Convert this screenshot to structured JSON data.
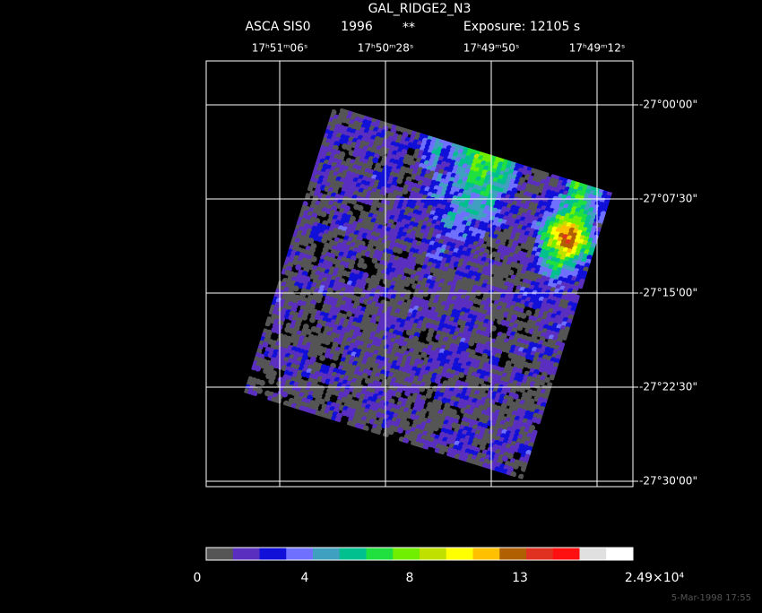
{
  "header": {
    "title": "GAL_RIDGE2_N3",
    "instrument": "ASCA SIS0",
    "year": "1996",
    "flag": "**",
    "exposure": "Exposure: 12105 s"
  },
  "ra_labels": [
    "17ʰ51ᵐ06ˢ",
    "17ʰ50ᵐ28ˢ",
    "17ʰ49ᵐ50ˢ",
    "17ʰ49ᵐ12ˢ"
  ],
  "dec_labels": [
    "-27°00'00\"",
    "-27°07'30\"",
    "-27°15'00\"",
    "-27°22'30\"",
    "-27°30'00\""
  ],
  "colorbar": {
    "colors": [
      "#555555",
      "#5a2fc0",
      "#1010d8",
      "#7070ff",
      "#40a0c0",
      "#00c090",
      "#20e040",
      "#70f000",
      "#c0e000",
      "#ffff00",
      "#ffc000",
      "#b06000",
      "#e03020",
      "#ff1010",
      "#e0e0e0",
      "#ffffff"
    ],
    "labels": [
      "0",
      "4",
      "8",
      "13",
      "2.49×10⁴"
    ]
  },
  "footer": "5-Mar-1998 17:55"
}
